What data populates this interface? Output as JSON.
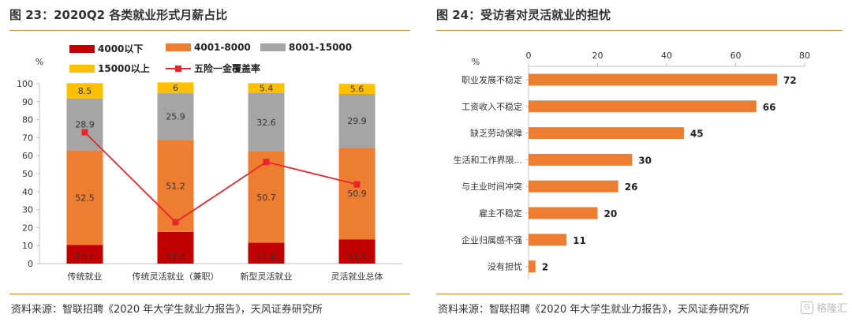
{
  "left": {
    "title": "图 23：2020Q2 各类就业形式月薪占比",
    "source": "资料来源：智联招聘《2020 年大学生就业力报告》，天风证券研究所"
  },
  "right": {
    "title": "图 24：受访者对灵活就业的担忧",
    "source": "资料来源：智联招聘《2020 年大学生就业力报告》，天风证券研究所"
  },
  "watermark": {
    "icon": "G",
    "text": "格隆汇"
  },
  "chart_data": [
    {
      "type": "bar",
      "stacked": true,
      "ylabel": "%",
      "ylim": [
        0,
        100
      ],
      "yticks": [
        0,
        10,
        20,
        30,
        40,
        50,
        60,
        70,
        80,
        90,
        100
      ],
      "categories": [
        "传统就业",
        "传统灵活就业（兼职）",
        "新型灵活就业",
        "灵活就业总体"
      ],
      "series": [
        {
          "name": "4000以下",
          "color": "#c00000",
          "values": [
            10.4,
            17.6,
            11.6,
            13.5
          ]
        },
        {
          "name": "4001-8000",
          "color": "#ed7d31",
          "values": [
            52.5,
            51.2,
            50.7,
            50.9
          ]
        },
        {
          "name": "8001-15000",
          "color": "#a5a5a5",
          "values": [
            28.9,
            25.9,
            32.6,
            29.9
          ]
        },
        {
          "name": "15000以上",
          "color": "#ffc000",
          "values": [
            8.5,
            6,
            5.4,
            5.6
          ]
        }
      ],
      "line_series": {
        "name": "五险一金覆盖率",
        "color": "#e8252a",
        "values": [
          73,
          23,
          56.5,
          44
        ]
      },
      "legend": "top-left"
    },
    {
      "type": "bar",
      "orientation": "horizontal",
      "xlim": [
        0,
        80
      ],
      "xticks": [
        0,
        20,
        40,
        60,
        80
      ],
      "xaxis_position": "top",
      "color": "#ed7d31",
      "categories": [
        "职业发展不稳定",
        "工资收入不稳定",
        "缺乏劳动保障",
        "生活和工作界限...",
        "与主业时间冲突",
        "雇主不稳定",
        "企业归属感不强",
        "没有担忧"
      ],
      "values": [
        72,
        66,
        45,
        30,
        26,
        20,
        11,
        2
      ],
      "ylabel": "%"
    }
  ]
}
